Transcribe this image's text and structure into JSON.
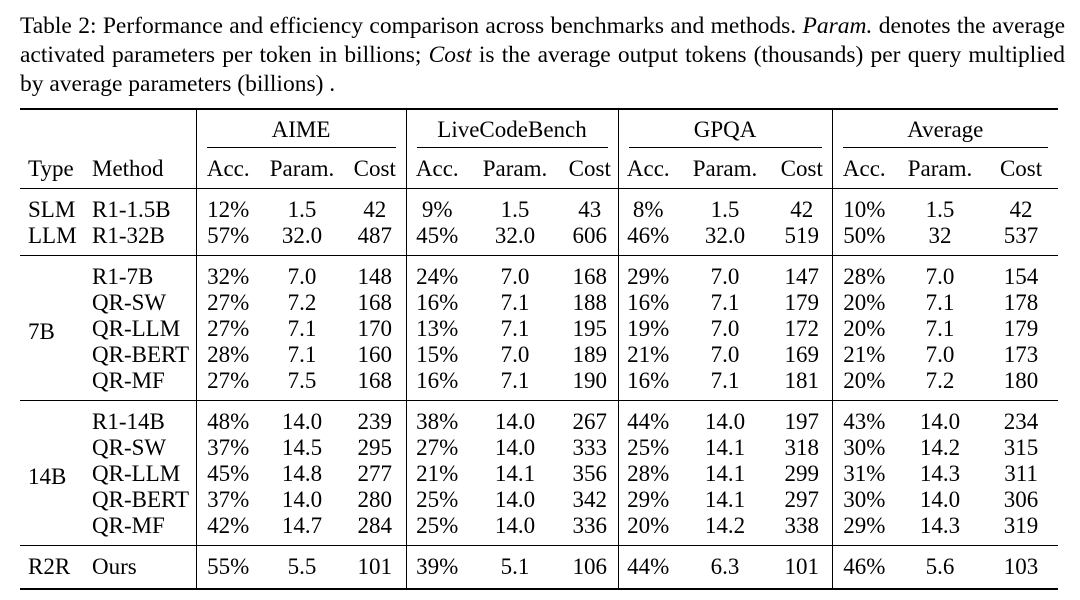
{
  "caption": {
    "prefix": "Table 2: Performance and efficiency comparison across benchmarks and methods. ",
    "param_term": "Param.",
    "mid1": " denotes the average activated parameters per token in billions; ",
    "cost_term": "Cost",
    "mid2": " is the average output tokens (thousands) per query multiplied by average parameters (billions) ."
  },
  "header": {
    "groups": [
      "AIME",
      "LiveCodeBench",
      "GPQA",
      "Average"
    ],
    "type_label": "Type",
    "method_label": "Method",
    "metrics": [
      "Acc.",
      "Param.",
      "Cost"
    ]
  },
  "sections": [
    {
      "type": "",
      "rows": [
        {
          "type": "SLM",
          "method": "R1-1.5B",
          "values": [
            "12%",
            "1.5",
            "42",
            "9%",
            "1.5",
            "43",
            "8%",
            "1.5",
            "42",
            "10%",
            "1.5",
            "42"
          ]
        },
        {
          "type": "LLM",
          "method": "R1-32B",
          "values": [
            "57%",
            "32.0",
            "487",
            "45%",
            "32.0",
            "606",
            "46%",
            "32.0",
            "519",
            "50%",
            "32",
            "537"
          ]
        }
      ]
    },
    {
      "type": "7B",
      "rows": [
        {
          "method": "R1-7B",
          "values": [
            "32%",
            "7.0",
            "148",
            "24%",
            "7.0",
            "168",
            "29%",
            "7.0",
            "147",
            "28%",
            "7.0",
            "154"
          ]
        },
        {
          "method": "QR-SW",
          "values": [
            "27%",
            "7.2",
            "168",
            "16%",
            "7.1",
            "188",
            "16%",
            "7.1",
            "179",
            "20%",
            "7.1",
            "178"
          ]
        },
        {
          "method": "QR-LLM",
          "values": [
            "27%",
            "7.1",
            "170",
            "13%",
            "7.1",
            "195",
            "19%",
            "7.0",
            "172",
            "20%",
            "7.1",
            "179"
          ]
        },
        {
          "method": "QR-BERT",
          "values": [
            "28%",
            "7.1",
            "160",
            "15%",
            "7.0",
            "189",
            "21%",
            "7.0",
            "169",
            "21%",
            "7.0",
            "173"
          ]
        },
        {
          "method": "QR-MF",
          "values": [
            "27%",
            "7.5",
            "168",
            "16%",
            "7.1",
            "190",
            "16%",
            "7.1",
            "181",
            "20%",
            "7.2",
            "180"
          ]
        }
      ]
    },
    {
      "type": "14B",
      "rows": [
        {
          "method": "R1-14B",
          "values": [
            "48%",
            "14.0",
            "239",
            "38%",
            "14.0",
            "267",
            "44%",
            "14.0",
            "197",
            "43%",
            "14.0",
            "234"
          ]
        },
        {
          "method": "QR-SW",
          "values": [
            "37%",
            "14.5",
            "295",
            "27%",
            "14.0",
            "333",
            "25%",
            "14.1",
            "318",
            "30%",
            "14.2",
            "315"
          ]
        },
        {
          "method": "QR-LLM",
          "values": [
            "45%",
            "14.8",
            "277",
            "21%",
            "14.1",
            "356",
            "28%",
            "14.1",
            "299",
            "31%",
            "14.3",
            "311"
          ]
        },
        {
          "method": "QR-BERT",
          "values": [
            "37%",
            "14.0",
            "280",
            "25%",
            "14.0",
            "342",
            "29%",
            "14.1",
            "297",
            "30%",
            "14.0",
            "306"
          ]
        },
        {
          "method": "QR-MF",
          "values": [
            "42%",
            "14.7",
            "284",
            "25%",
            "14.0",
            "336",
            "20%",
            "14.2",
            "338",
            "29%",
            "14.3",
            "319"
          ]
        }
      ]
    }
  ],
  "ours": {
    "type": "R2R",
    "method": "Ours",
    "values": [
      "55%",
      "5.5",
      "101",
      "39%",
      "5.1",
      "106",
      "44%",
      "6.3",
      "101",
      "46%",
      "5.6",
      "103"
    ]
  }
}
